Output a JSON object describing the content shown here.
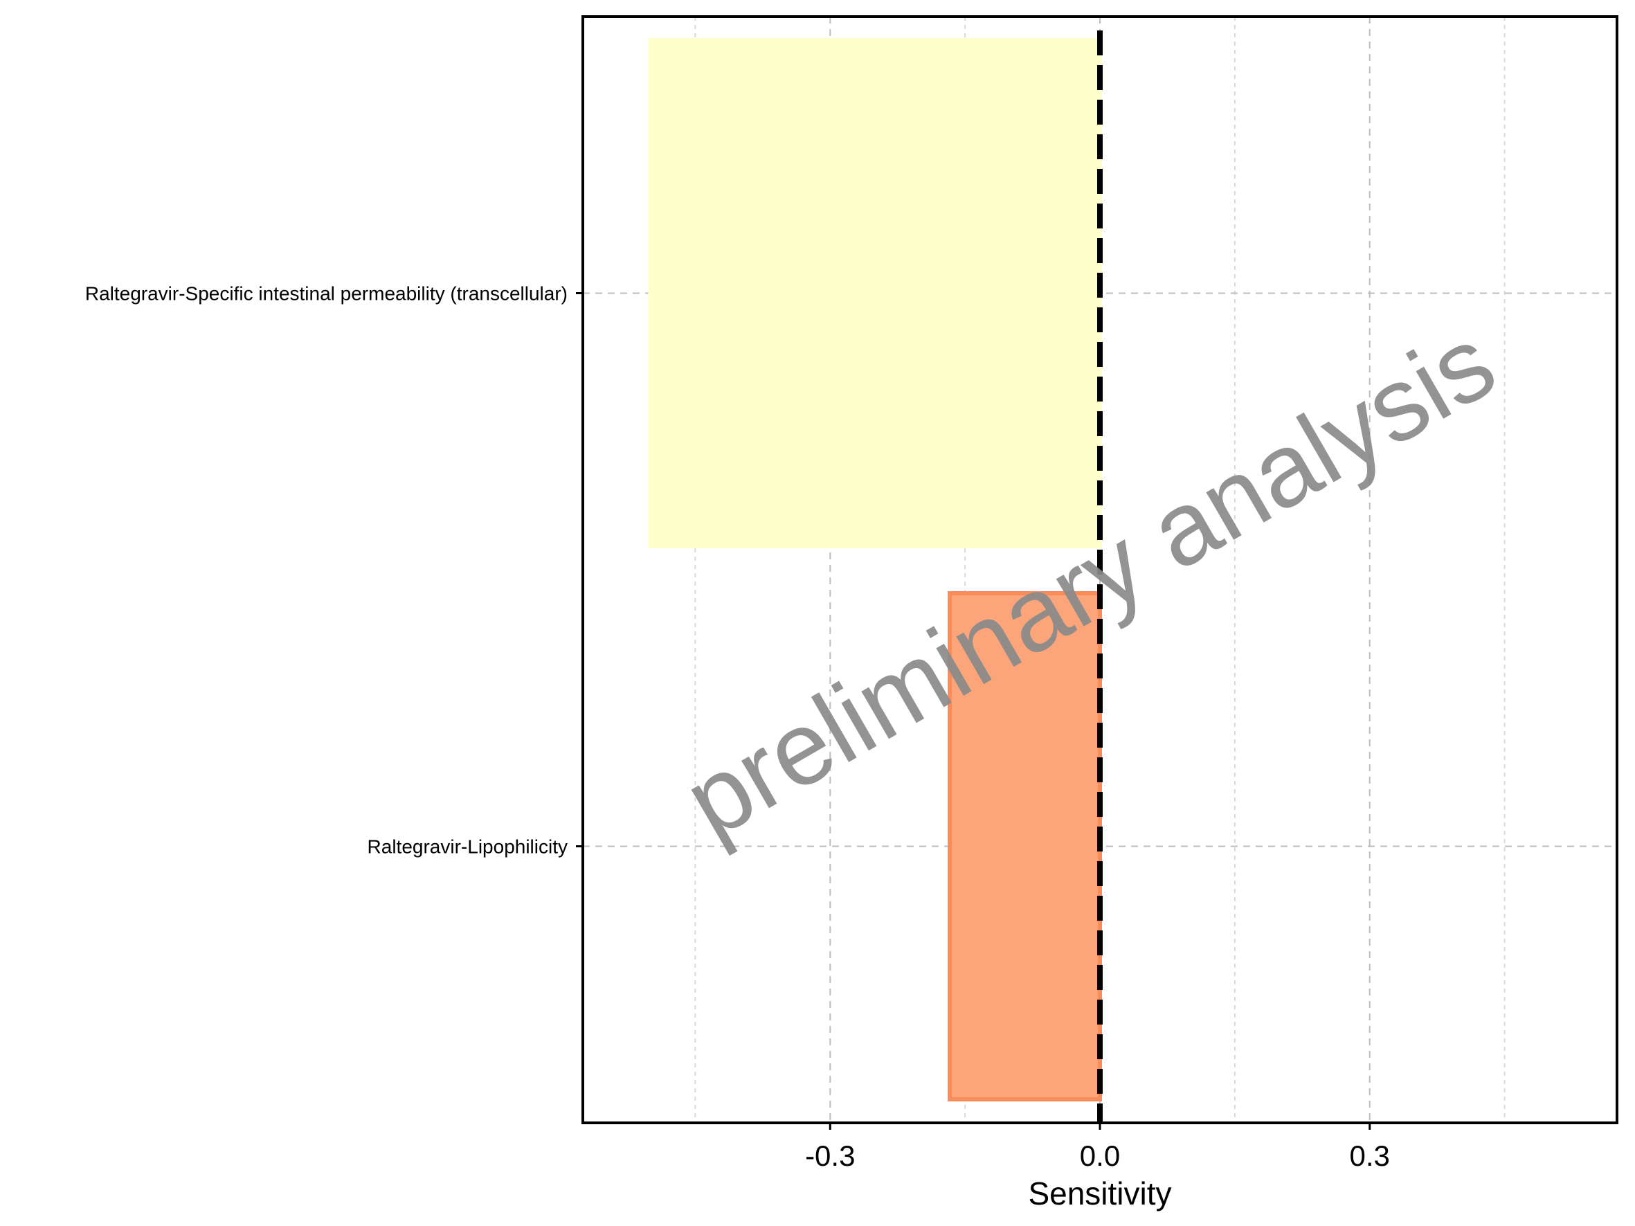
{
  "chart_data": {
    "type": "bar",
    "orientation": "horizontal",
    "categories": [
      "Raltegravir-Specific intestinal permeability (transcellular)",
      "Raltegravir-Lipophilicity"
    ],
    "values": [
      -0.5,
      -0.167
    ],
    "colors": [
      "#FFFFCC",
      "#FCA57B"
    ],
    "edge_colors": [
      "#FFFFCC",
      "#F98C5B"
    ],
    "xlabel": "Sensitivity",
    "ylabel": "",
    "xlim": [
      -0.575,
      0.575
    ],
    "xticks": [
      -0.3,
      0.0,
      0.3
    ],
    "xtick_labels": [
      "-0.3",
      "0.0",
      "0.3"
    ],
    "minor_gridlines": [
      -0.45,
      -0.15,
      0.15,
      0.45
    ],
    "reference_line": 0.0,
    "grid": true,
    "watermark": "preliminary analysis"
  }
}
